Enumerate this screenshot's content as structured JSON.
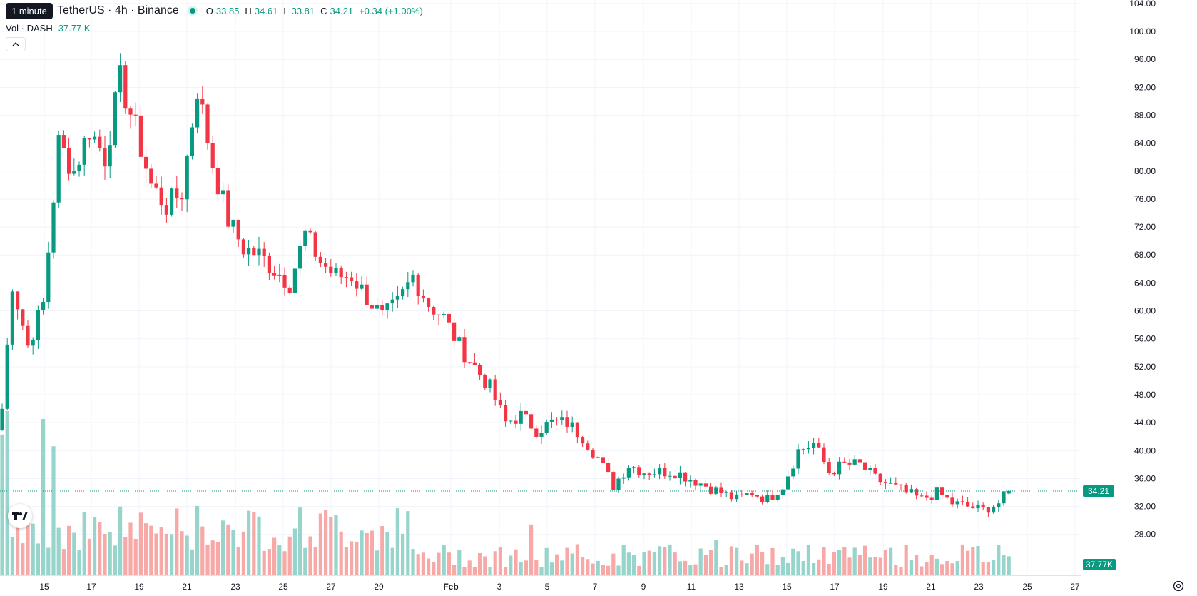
{
  "tooltip": {
    "text": "1 minute"
  },
  "header": {
    "symbol": "TetherUS · 4h · Binance",
    "open_label": "O",
    "open": "33.85",
    "high_label": "H",
    "high": "34.61",
    "low_label": "L",
    "low": "33.81",
    "close_label": "C",
    "close": "34.21",
    "change": "+0.34 (+1.00%)"
  },
  "volume_legend": {
    "label": "Vol · DASH",
    "value": "37.77 K"
  },
  "price_badge": "34.21",
  "volume_badge": "37.77K",
  "icons": {
    "logo": "tradingview-logo-icon",
    "settings": "settings-icon",
    "collapse": "chevron-up-icon"
  },
  "colors": {
    "up": "#089981",
    "down": "#f23645",
    "up_volume": "#97d4cb",
    "down_volume": "#f7a9a7",
    "grid": "#f0f3fa"
  },
  "chart_data": {
    "type": "candlestick",
    "interval": "4h",
    "y_axis": {
      "ticks": [
        "104.00",
        "100.00",
        "96.00",
        "92.00",
        "88.00",
        "84.00",
        "80.00",
        "76.00",
        "72.00",
        "68.00",
        "64.00",
        "60.00",
        "56.00",
        "52.00",
        "48.00",
        "44.00",
        "40.00",
        "36.00",
        "32.00",
        "28.00"
      ],
      "range": [
        24.5,
        104.5
      ],
      "position": "right"
    },
    "x_axis": {
      "ticks": [
        "15",
        "17",
        "19",
        "21",
        "23",
        "25",
        "27",
        "29",
        "Feb",
        "3",
        "5",
        "7",
        "9",
        "11",
        "13",
        "15",
        "17",
        "19",
        "21",
        "23",
        "25",
        "27"
      ]
    },
    "last_price": 34.21,
    "last_volume": "37.77K",
    "grid": true,
    "price_path": [
      [
        0,
        46
      ],
      [
        2,
        64
      ],
      [
        5,
        55
      ],
      [
        8,
        61
      ],
      [
        11,
        84
      ],
      [
        14,
        80
      ],
      [
        17,
        86
      ],
      [
        20,
        82
      ],
      [
        23,
        93
      ],
      [
        26,
        86
      ],
      [
        29,
        78
      ],
      [
        32,
        75
      ],
      [
        35,
        77
      ],
      [
        38,
        92
      ],
      [
        41,
        81
      ],
      [
        44,
        73
      ],
      [
        47,
        69
      ],
      [
        50,
        68
      ],
      [
        53,
        66
      ],
      [
        56,
        64
      ],
      [
        59,
        71
      ],
      [
        62,
        67
      ],
      [
        65,
        65
      ],
      [
        68,
        65
      ],
      [
        71,
        62
      ],
      [
        74,
        59
      ],
      [
        77,
        61
      ],
      [
        80,
        65
      ],
      [
        83,
        61
      ],
      [
        86,
        59
      ],
      [
        89,
        55
      ],
      [
        92,
        52
      ],
      [
        95,
        49
      ],
      [
        98,
        44
      ],
      [
        101,
        45
      ],
      [
        104,
        43
      ],
      [
        107,
        44
      ],
      [
        110,
        44
      ],
      [
        113,
        42
      ],
      [
        116,
        39
      ],
      [
        119,
        35
      ],
      [
        122,
        38
      ],
      [
        125,
        37
      ],
      [
        128,
        37
      ],
      [
        131,
        37
      ],
      [
        134,
        36
      ],
      [
        137,
        35
      ],
      [
        140,
        34
      ],
      [
        143,
        33
      ],
      [
        146,
        34
      ],
      [
        149,
        33
      ],
      [
        152,
        35
      ],
      [
        155,
        40
      ],
      [
        158,
        41
      ],
      [
        161,
        37
      ],
      [
        164,
        38
      ],
      [
        167,
        38
      ],
      [
        170,
        36
      ],
      [
        173,
        35
      ],
      [
        176,
        34
      ],
      [
        179,
        33
      ],
      [
        182,
        34
      ],
      [
        185,
        32.5
      ],
      [
        188,
        32
      ],
      [
        191,
        31.5
      ],
      [
        194,
        32.5
      ],
      [
        196,
        34.21
      ]
    ],
    "notable_volumes": [
      [
        0,
        36
      ],
      [
        1,
        42
      ],
      [
        8,
        40
      ],
      [
        10,
        33
      ],
      [
        27,
        16
      ],
      [
        43,
        14
      ],
      [
        44,
        13
      ],
      [
        103,
        13
      ],
      [
        139,
        9
      ],
      [
        143,
        7
      ],
      [
        218,
        10
      ],
      [
        247,
        10
      ],
      [
        307,
        11
      ],
      [
        344,
        8
      ]
    ]
  }
}
